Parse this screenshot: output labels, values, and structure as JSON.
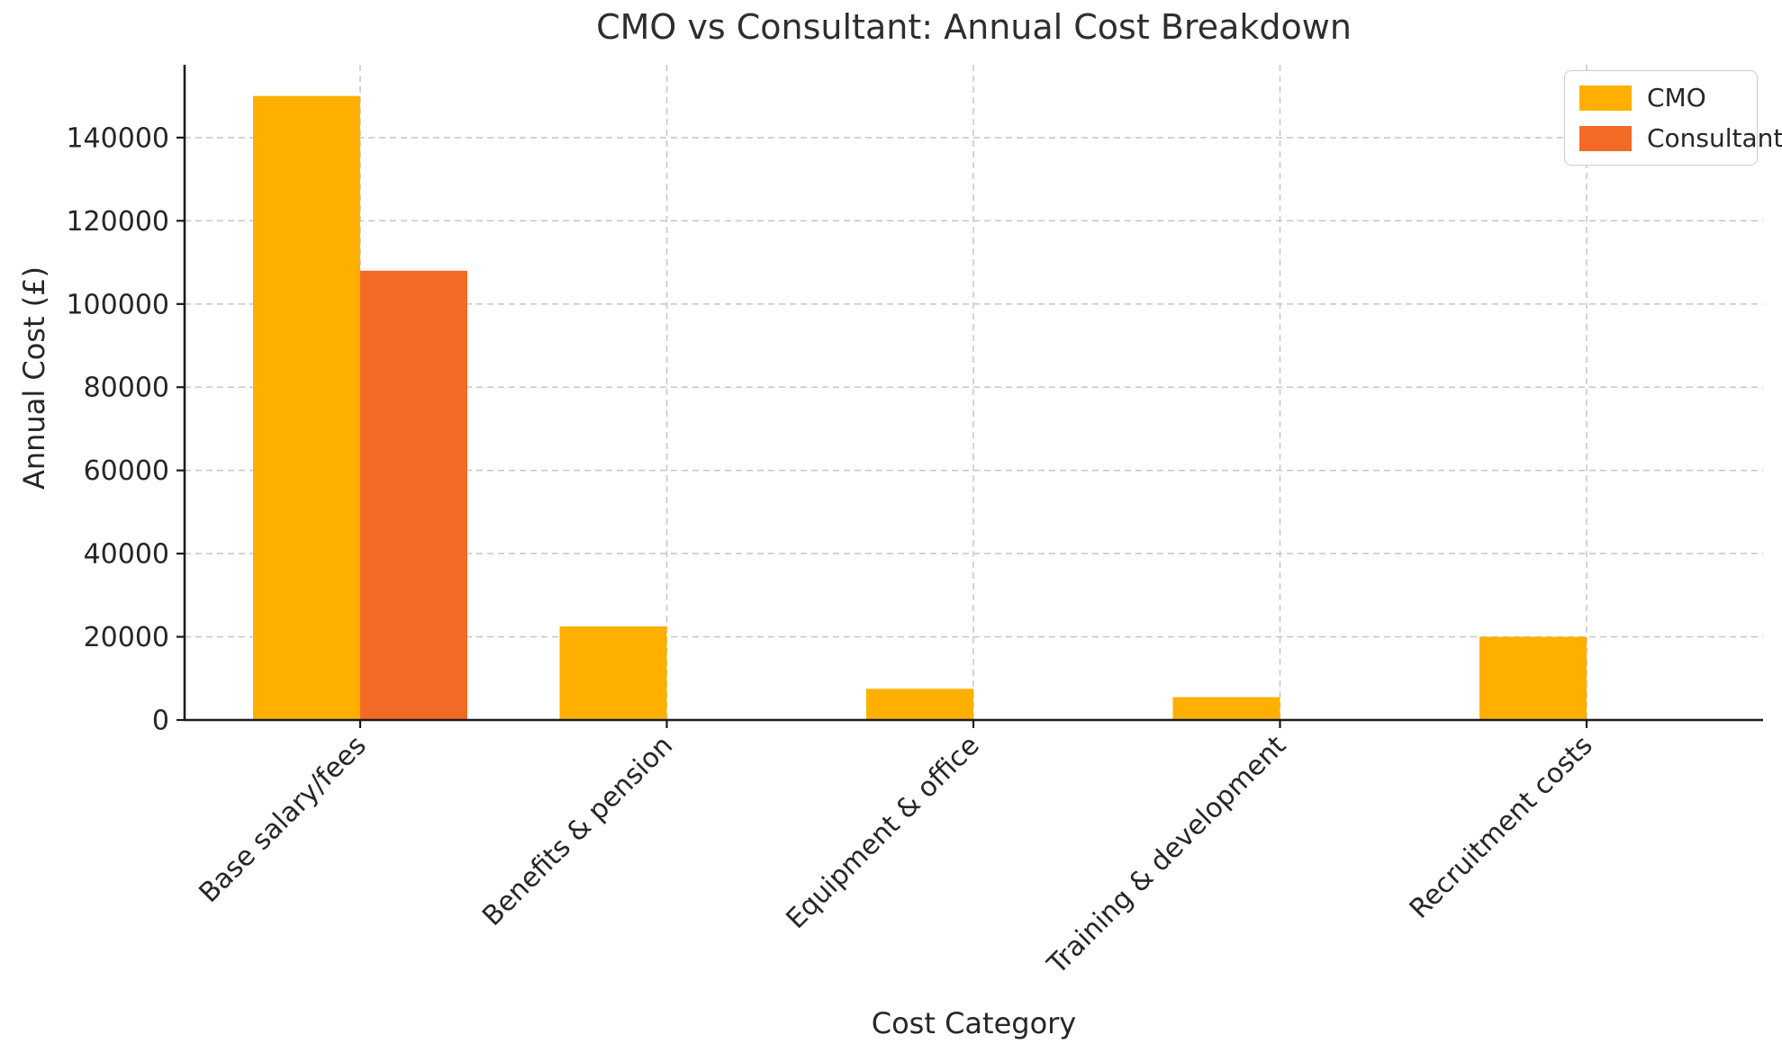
{
  "chart_data": {
    "type": "bar",
    "title": "CMO vs Consultant: Annual Cost Breakdown",
    "xlabel": "Cost Category",
    "ylabel": "Annual Cost (£)",
    "categories": [
      "Base salary/fees",
      "Benefits & pension",
      "Equipment & office",
      "Training & development",
      "Recruitment costs"
    ],
    "series": [
      {
        "name": "CMO",
        "color": "#FFAF00",
        "values": [
          150000,
          22500,
          7500,
          5500,
          20000
        ]
      },
      {
        "name": "Consultant",
        "color": "#F26A24",
        "values": [
          108000,
          0,
          0,
          0,
          0
        ]
      }
    ],
    "ylim": [
      0,
      157500
    ],
    "yticks": [
      0,
      20000,
      40000,
      60000,
      80000,
      100000,
      120000,
      140000
    ],
    "grid": true,
    "grid_style": "dashed",
    "legend_position": "upper right",
    "bar_layout": "grouped"
  }
}
